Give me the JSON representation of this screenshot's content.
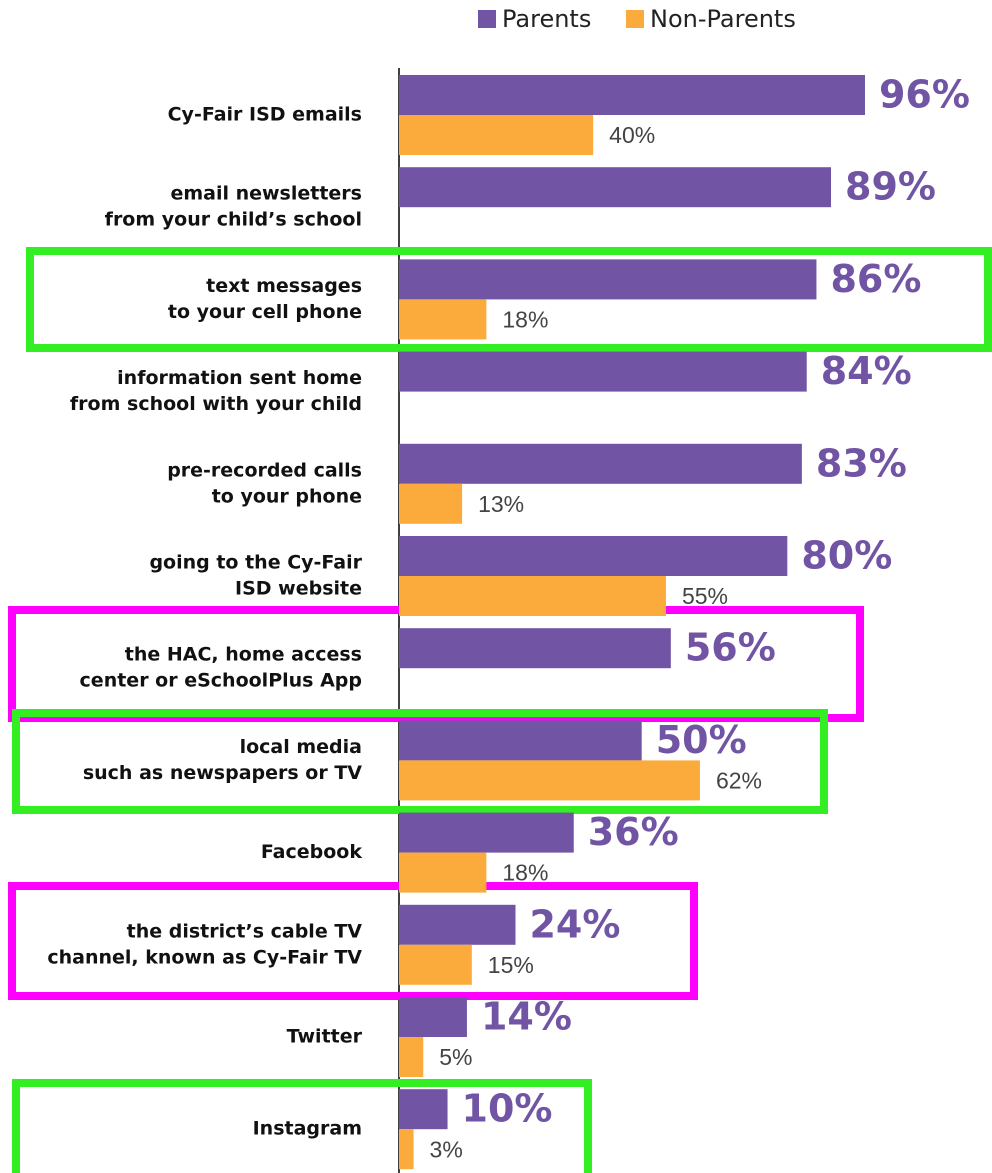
{
  "chart_data": {
    "type": "hbar",
    "categories": [
      [
        "Cy-Fair ISD emails"
      ],
      [
        "email newsletters",
        "from your child’s school"
      ],
      [
        "text messages",
        "to your cell phone"
      ],
      [
        "information sent home",
        "from school with your child"
      ],
      [
        "pre-recorded calls",
        "to your phone"
      ],
      [
        "going to the Cy-Fair",
        "ISD website"
      ],
      [
        "the HAC, home access",
        "center or eSchoolPlus App"
      ],
      [
        "local media",
        "such as newspapers or TV"
      ],
      [
        "Facebook"
      ],
      [
        "the district’s cable TV",
        "channel, known as Cy-Fair TV"
      ],
      [
        "Twitter"
      ],
      [
        "Instagram"
      ]
    ],
    "series": [
      {
        "name": "Parents",
        "color": "#7155a4",
        "values": [
          96,
          89,
          86,
          84,
          83,
          80,
          56,
          50,
          36,
          24,
          14,
          10
        ],
        "value_labels": [
          "96%",
          "89%",
          "86%",
          "84%",
          "83%",
          "80%",
          "56%",
          "50%",
          "36%",
          "24%",
          "14%",
          "10%"
        ]
      },
      {
        "name": "Non-Parents",
        "color": "#fbab3c",
        "values": [
          40,
          null,
          18,
          null,
          13,
          55,
          null,
          62,
          18,
          15,
          5,
          3
        ],
        "value_labels": [
          "40%",
          null,
          "18%",
          null,
          "13%",
          "55%",
          null,
          "62%",
          "18%",
          "15%",
          "5%",
          "3%"
        ]
      }
    ],
    "xlim": [
      0,
      100
    ]
  }
}
